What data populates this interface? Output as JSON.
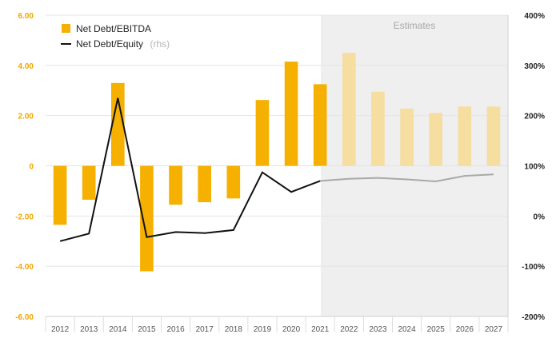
{
  "colors": {
    "bar_actual": "#f5b000",
    "bar_estimate": "#f6dda0",
    "line_actual": "#111111",
    "line_estimate": "#a9a9a9",
    "estimates_shade": "#efefef",
    "left_axis": "#f0a500",
    "right_axis": "#222222",
    "gridline": "#e4e4e4"
  },
  "legend": {
    "bar_label": "Net Debt/EBITDA",
    "line_label": "Net Debt/Equity",
    "line_suffix": "(rhs)"
  },
  "chart_data": {
    "type": "bar+line",
    "categories": [
      "2012",
      "2013",
      "2014",
      "2015",
      "2016",
      "2017",
      "2018",
      "2019",
      "2020",
      "2021",
      "2022",
      "2023",
      "2024",
      "2025",
      "2026",
      "2027"
    ],
    "estimates_label": "Estimates",
    "estimates_start": "2022",
    "series": [
      {
        "name": "Net Debt/EBITDA",
        "type": "bar",
        "axis": "left",
        "values": [
          -2.35,
          -1.35,
          3.3,
          -4.2,
          -1.55,
          -1.45,
          -1.3,
          2.62,
          4.15,
          3.25,
          4.5,
          2.95,
          2.28,
          2.1,
          2.36,
          2.36
        ]
      },
      {
        "name": "Net Debt/Equity",
        "type": "line",
        "axis": "right",
        "values": [
          -50,
          -35,
          235,
          -42,
          -32,
          -34,
          -28,
          87,
          48,
          70,
          74,
          76,
          73,
          69,
          80,
          83
        ]
      }
    ],
    "y_left": {
      "min": -6,
      "max": 6,
      "ticks": [
        "6.00",
        "4.00",
        "2.00",
        "0",
        "-2.00",
        "-4.00",
        "-6.00"
      ]
    },
    "y_right": {
      "min": -200,
      "max": 400,
      "ticks": [
        "400%",
        "300%",
        "200%",
        "100%",
        "0%",
        "-100%",
        "-200%"
      ]
    }
  }
}
